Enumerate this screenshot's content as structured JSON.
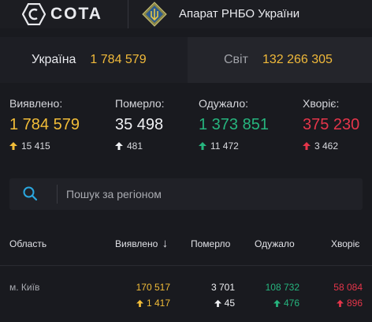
{
  "header": {
    "brand": "COTA",
    "org": "Апарат РНБО України"
  },
  "tabs": [
    {
      "label": "Україна",
      "value": "1 784 579",
      "active": true
    },
    {
      "label": "Світ",
      "value": "132 266 305",
      "active": false
    }
  ],
  "stats": {
    "detected": {
      "label": "Виявлено:",
      "value": "1 784 579",
      "delta": "15 415"
    },
    "died": {
      "label": "Померло:",
      "value": "35 498",
      "delta": "481"
    },
    "recovered": {
      "label": "Одужало:",
      "value": "1 373 851",
      "delta": "11 472"
    },
    "sick": {
      "label": "Хворіє:",
      "value": "375 230",
      "delta": "3 462"
    }
  },
  "search": {
    "placeholder": "Пошук за регіоном",
    "value": ""
  },
  "table": {
    "headers": {
      "region": "Область",
      "detected": "Виявлено",
      "sort_indicator": "↓",
      "died": "Померло",
      "recovered": "Одужало",
      "sick": "Хворіє"
    },
    "rows": [
      {
        "region": "м. Київ",
        "detected": "170 517",
        "detected_delta": "1 417",
        "died": "3 701",
        "died_delta": "45",
        "recovered": "108 732",
        "recovered_delta": "476",
        "sick": "58 084",
        "sick_delta": "896"
      }
    ]
  },
  "colors": {
    "background": "#191a1f",
    "yellow": "#f2bd38",
    "green": "#26b57e",
    "red": "#e5354a",
    "accent_blue": "#2aa7e0"
  },
  "icons": [
    "cota-logo-icon",
    "rnbo-emblem-icon",
    "search-icon",
    "arrow-up-icon",
    "sort-down-icon"
  ]
}
